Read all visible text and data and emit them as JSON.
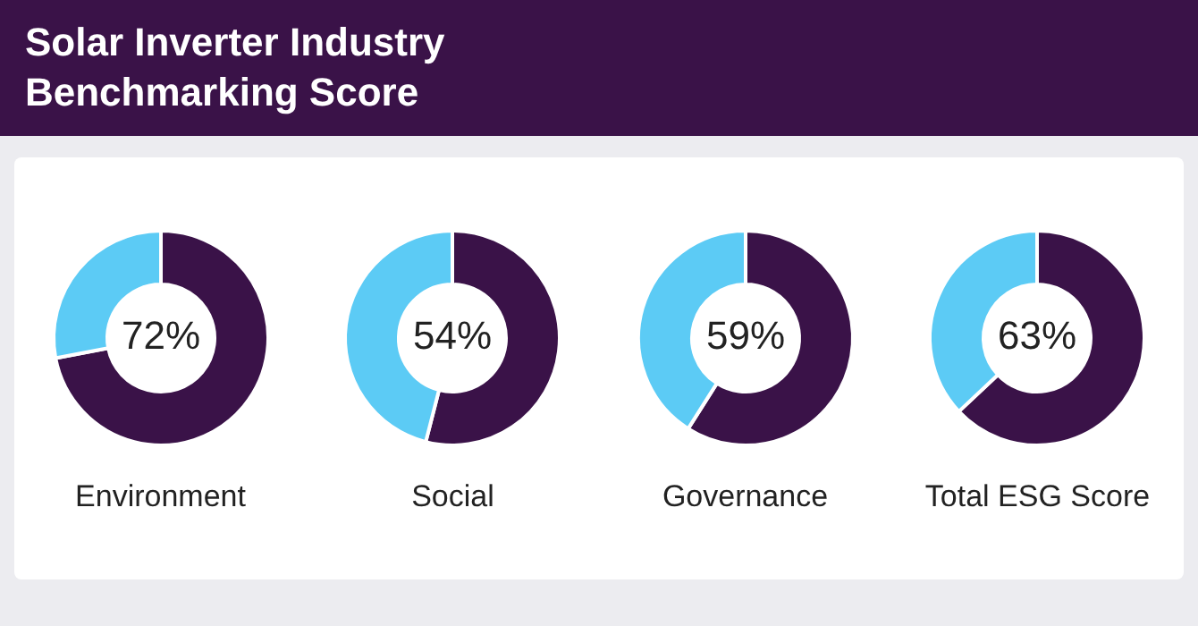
{
  "chart_data": [
    {
      "type": "donut",
      "title": "Solar Inverter Industry Benchmarking Score",
      "xlabel": "Environment",
      "categories": [
        null,
        null
      ],
      "values": [
        72,
        28
      ],
      "colors": [
        "#3a1248",
        "#5ccbf5"
      ],
      "value_labels": [
        "72%",
        null
      ],
      "legend": false
    },
    {
      "type": "donut",
      "xlabel": "Social",
      "categories": [
        null,
        null
      ],
      "values": [
        54,
        46
      ],
      "colors": [
        "#3a1248",
        "#5ccbf5"
      ],
      "value_labels": [
        "54%",
        null
      ],
      "legend": false
    },
    {
      "type": "donut",
      "xlabel": "Governance",
      "categories": [
        null,
        null
      ],
      "values": [
        59,
        41
      ],
      "colors": [
        "#3a1248",
        "#5ccbf5"
      ],
      "value_labels": [
        "59%",
        null
      ],
      "legend": false
    },
    {
      "type": "donut",
      "xlabel": "Total ESG Score",
      "categories": [
        null,
        null
      ],
      "values": [
        63,
        37
      ],
      "colors": [
        "#3a1248",
        "#5ccbf5"
      ],
      "value_labels": [
        "63%",
        null
      ],
      "legend": false
    }
  ]
}
